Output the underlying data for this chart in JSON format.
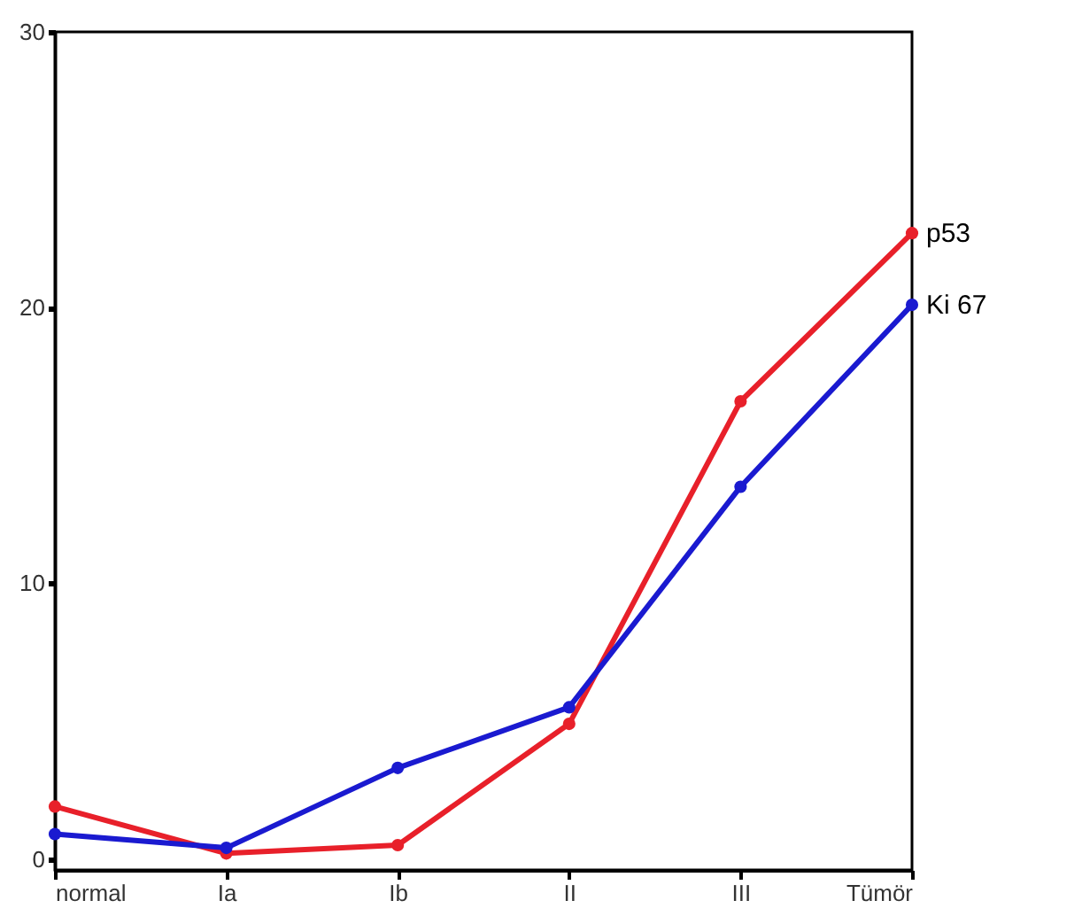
{
  "chart_data": {
    "type": "line",
    "categories": [
      "normal",
      "Ia",
      "Ib",
      "II",
      "III",
      "Tümör"
    ],
    "series": [
      {
        "name": "p53",
        "color": "#e8202a",
        "values": [
          1.9,
          0.2,
          0.5,
          4.9,
          16.6,
          22.7
        ]
      },
      {
        "name": "Ki 67",
        "color": "#1a1ad0",
        "values": [
          0.9,
          0.4,
          3.3,
          5.5,
          13.5,
          20.1
        ]
      }
    ],
    "ylim": [
      -0.4,
      30
    ],
    "yticks": [
      0,
      10,
      20,
      30
    ],
    "grid": false,
    "legend": false,
    "marker": "circle",
    "line_style": "solid"
  }
}
